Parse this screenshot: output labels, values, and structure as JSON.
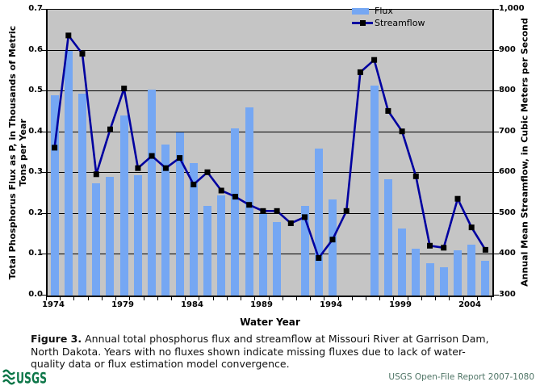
{
  "chart_data": {
    "type": "bar+line",
    "x_label": "Water Year",
    "plot_bg": "#C5C5C5",
    "grid": "horizontal",
    "legend_position": "top-right-inside",
    "legend": {
      "flux_label": "Flux",
      "streamflow_label": "Streamflow"
    },
    "y_left": {
      "title_line1": "Total Phosphorus Flux as P, in Thousands of Metric",
      "title_line2": "Tons per Year",
      "min": 0,
      "max": 0.7,
      "ticks": [
        "0.0",
        "0.1",
        "0.2",
        "0.3",
        "0.4",
        "0.5",
        "0.6",
        "0.7"
      ]
    },
    "y_right": {
      "title": "Annual Mean Streamflow, in Cubic Meters per Second",
      "min": 300,
      "max": 1000,
      "ticks": [
        "300",
        "400",
        "500",
        "600",
        "700",
        "800",
        "900",
        "1,000"
      ]
    },
    "categories": [
      1974,
      1975,
      1976,
      1977,
      1978,
      1979,
      1980,
      1981,
      1982,
      1983,
      1984,
      1985,
      1986,
      1987,
      1988,
      1989,
      1990,
      1991,
      1992,
      1993,
      1994,
      1995,
      1996,
      1997,
      1998,
      1999,
      2000,
      2001,
      2002,
      2003,
      2004,
      2005
    ],
    "x_tick_labels": [
      {
        "label": "1974",
        "index": 0
      },
      {
        "label": "1979",
        "index": 5
      },
      {
        "label": "1984",
        "index": 10
      },
      {
        "label": "1989",
        "index": 15
      },
      {
        "label": "1994",
        "index": 20
      },
      {
        "label": "1999",
        "index": 25
      },
      {
        "label": "2004",
        "index": 30
      }
    ],
    "series": [
      {
        "name": "Flux",
        "type": "bar",
        "color": "#75A7F3",
        "values": [
          0.49,
          0.6,
          0.495,
          0.275,
          0.29,
          0.44,
          0.295,
          0.505,
          0.37,
          0.4,
          0.325,
          0.22,
          0.245,
          0.41,
          0.46,
          0.2,
          0.18,
          null,
          0.22,
          0.36,
          0.235,
          null,
          null,
          0.515,
          0.285,
          0.165,
          0.115,
          0.08,
          0.07,
          0.11,
          0.125,
          0.085
        ]
      },
      {
        "name": "Streamflow",
        "type": "line",
        "color": "#0000A0",
        "marker": "black-square",
        "marker_color": "#000000",
        "values": [
          660,
          935,
          890,
          595,
          705,
          805,
          610,
          640,
          610,
          635,
          570,
          600,
          555,
          540,
          520,
          505,
          505,
          475,
          490,
          390,
          435,
          505,
          845,
          875,
          750,
          700,
          590,
          420,
          415,
          535,
          465,
          410
        ]
      }
    ]
  },
  "caption": {
    "prefix": "Figure 3.",
    "line1_rest": "Annual total phosphorus flux and streamflow at Missouri River at Garrison Dam,",
    "line2": "North Dakota. Years with no fluxes shown indicate missing fluxes due to lack of water-",
    "line3": "quality data or flux estimation model convergence."
  },
  "footer": {
    "logo_text": "USGS",
    "report": "USGS Open-File Report 2007-1080",
    "logo_color": "#0E7749"
  }
}
